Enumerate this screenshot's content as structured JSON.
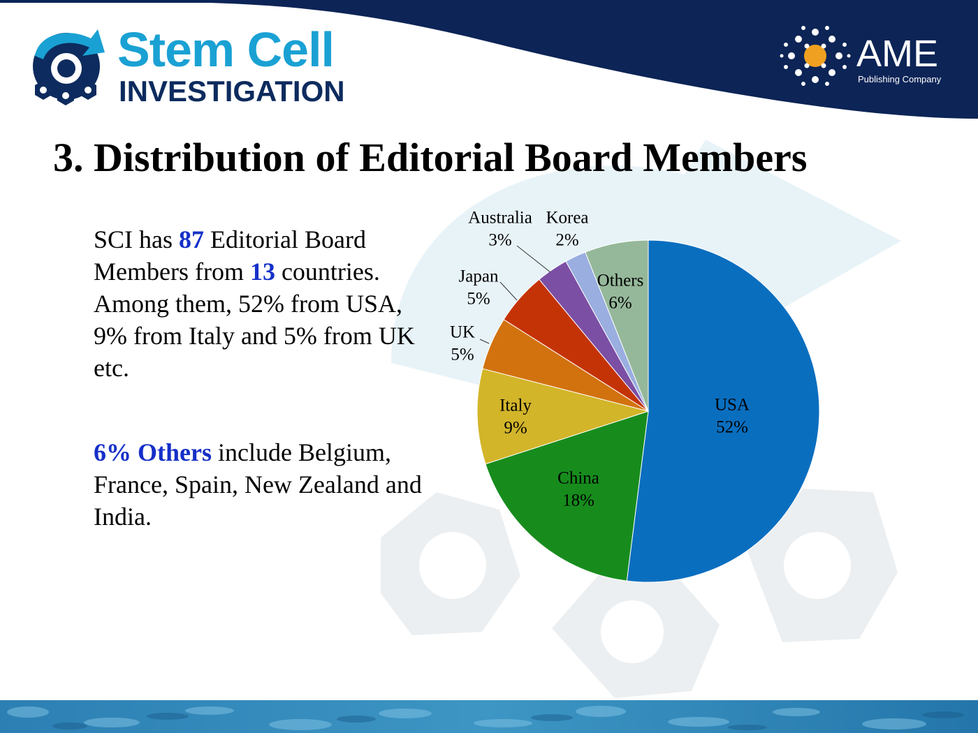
{
  "header": {
    "journal_name_top": "Stem Cell",
    "journal_name_bottom": "INVESTIGATION",
    "publisher_name": "AME",
    "publisher_sub": "Publishing Company"
  },
  "slide_title": "3. Distribution of Editorial Board Members",
  "summary": {
    "line_a": "SCI has ",
    "member_count": "87",
    "line_b": " Editorial Board Members from ",
    "country_count": "13",
    "line_c": " countries. Among them, 52% from USA, 9% from Italy and 5% from UK etc."
  },
  "others_note": {
    "highlight": "6% Others",
    "rest": " include Belgium, France, Spain, New Zealand and India."
  },
  "colors": {
    "navy": "#0c2456",
    "accent_blue": "#1530c8",
    "logo_cyan": "#1aa1d3"
  },
  "chart_data": {
    "type": "pie",
    "start": "12 o'clock",
    "direction": "clockwise",
    "slices": [
      {
        "label": "USA",
        "value": 52,
        "display": "52%",
        "color": "#0a6ebf"
      },
      {
        "label": "China",
        "value": 18,
        "display": "18%",
        "color": "#178c1d"
      },
      {
        "label": "Italy",
        "value": 9,
        "display": "9%",
        "color": "#d3b52a"
      },
      {
        "label": "UK",
        "value": 5,
        "display": "5%",
        "color": "#d2720f"
      },
      {
        "label": "Japan",
        "value": 5,
        "display": "5%",
        "color": "#c43306"
      },
      {
        "label": "Australia",
        "value": 3,
        "display": "3%",
        "color": "#7b4fa4"
      },
      {
        "label": "Korea",
        "value": 2,
        "display": "2%",
        "color": "#9aaee0"
      },
      {
        "label": "Others",
        "value": 6,
        "display": "6%",
        "color": "#95b89a"
      }
    ]
  }
}
